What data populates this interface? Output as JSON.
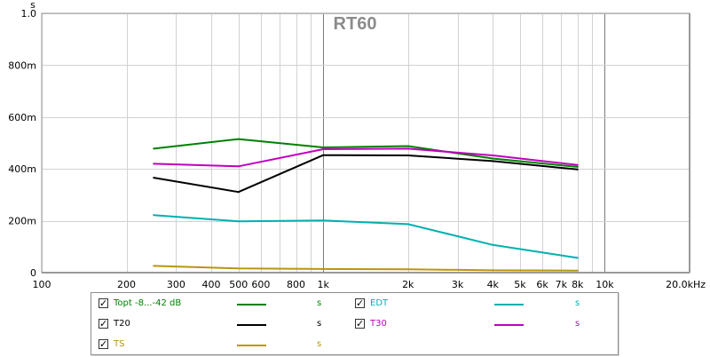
{
  "chart_data": {
    "type": "line",
    "title": "RT60",
    "ylabel": "s",
    "xlabel": "",
    "xscale": "log",
    "xlim": [
      100,
      20000
    ],
    "ylim": [
      0,
      1.0
    ],
    "grid": true,
    "x_ticks": [
      {
        "value": 100,
        "label": "100"
      },
      {
        "value": 200,
        "label": "200"
      },
      {
        "value": 300,
        "label": "300"
      },
      {
        "value": 400,
        "label": "400"
      },
      {
        "value": 500,
        "label": "500"
      },
      {
        "value": 600,
        "label": "600"
      },
      {
        "value": 800,
        "label": "800"
      },
      {
        "value": 1000,
        "label": "1k"
      },
      {
        "value": 2000,
        "label": "2k"
      },
      {
        "value": 3000,
        "label": "3k"
      },
      {
        "value": 4000,
        "label": "4k"
      },
      {
        "value": 5000,
        "label": "5k"
      },
      {
        "value": 6000,
        "label": "6k"
      },
      {
        "value": 7000,
        "label": "7k"
      },
      {
        "value": 8000,
        "label": "8k"
      },
      {
        "value": 10000,
        "label": "10k"
      },
      {
        "value": 20000,
        "label": "20.0kHz"
      }
    ],
    "y_ticks": [
      {
        "value": 0,
        "label": "0"
      },
      {
        "value": 0.2,
        "label": "200m"
      },
      {
        "value": 0.4,
        "label": "400m"
      },
      {
        "value": 0.6,
        "label": "600m"
      },
      {
        "value": 0.8,
        "label": "800m"
      },
      {
        "value": 1.0,
        "label": "1.0"
      }
    ],
    "x": [
      250,
      500,
      1000,
      2000,
      4000,
      8000
    ],
    "series": [
      {
        "name": "Topt -8...-42 dB",
        "color": "#008000",
        "values": [
          0.478,
          0.515,
          0.483,
          0.488,
          0.44,
          0.408
        ]
      },
      {
        "name": "EDT",
        "color": "#00b0b0",
        "values": [
          0.222,
          0.198,
          0.201,
          0.187,
          0.107,
          0.057
        ]
      },
      {
        "name": "T20",
        "color": "#000000",
        "values": [
          0.366,
          0.311,
          0.453,
          0.452,
          0.43,
          0.398
        ]
      },
      {
        "name": "T30",
        "color": "#c000c0",
        "values": [
          0.42,
          0.41,
          0.476,
          0.478,
          0.452,
          0.415
        ]
      },
      {
        "name": "TS",
        "color": "#b8960c",
        "values": [
          0.026,
          0.016,
          0.014,
          0.013,
          0.009,
          0.008
        ]
      }
    ]
  },
  "legend": {
    "check_mark": "✓",
    "entries": [
      {
        "name": "Topt -8...-42 dB",
        "unit": "s",
        "color": "#008000"
      },
      {
        "name": "EDT",
        "unit": "s",
        "color": "#00b0b0"
      },
      {
        "name": "T20",
        "unit": "s",
        "color": "#000000"
      },
      {
        "name": "T30",
        "unit": "s",
        "color": "#c000c0"
      },
      {
        "name": "TS",
        "unit": "s",
        "color": "#b8960c"
      }
    ]
  }
}
